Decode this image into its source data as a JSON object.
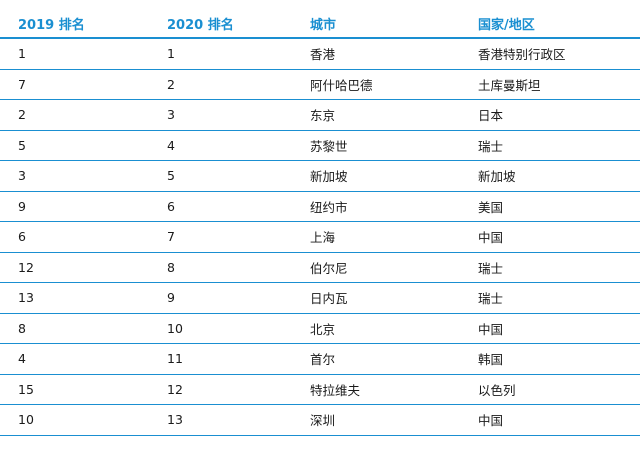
{
  "headers": [
    "2019 排名",
    "2020 排名",
    "城市",
    "国家/地区"
  ],
  "rows": [
    {
      "rank2019": "1",
      "rank2020": "1",
      "city": "香港",
      "country": "香港特别行政区"
    },
    {
      "rank2019": "7",
      "rank2020": "2",
      "city": "阿什哈巴德",
      "country": "土库曼斯坦"
    },
    {
      "rank2019": "2",
      "rank2020": "3",
      "city": "东京",
      "country": "日本"
    },
    {
      "rank2019": "5",
      "rank2020": "4",
      "city": "苏黎世",
      "country": "瑞士"
    },
    {
      "rank2019": "3",
      "rank2020": "5",
      "city": "新加坡",
      "country": "新加坡"
    },
    {
      "rank2019": "9",
      "rank2020": "6",
      "city": "纽约市",
      "country": "美国"
    },
    {
      "rank2019": "6",
      "rank2020": "7",
      "city": "上海",
      "country": "中国"
    },
    {
      "rank2019": "12",
      "rank2020": "8",
      "city": "伯尔尼",
      "country": "瑞士"
    },
    {
      "rank2019": "13",
      "rank2020": "9",
      "city": "日内瓦",
      "country": "瑞士"
    },
    {
      "rank2019": "8",
      "rank2020": "10",
      "city": "北京",
      "country": "中国"
    },
    {
      "rank2019": "4",
      "rank2020": "11",
      "city": "首尔",
      "country": "韩国"
    },
    {
      "rank2019": "15",
      "rank2020": "12",
      "city": "特拉维夫",
      "country": "以色列"
    },
    {
      "rank2019": "10",
      "rank2020": "13",
      "city": "深圳",
      "country": "中国"
    }
  ],
  "colors": {
    "accent": "#1a8fd1",
    "text": "#1a1a1a"
  }
}
